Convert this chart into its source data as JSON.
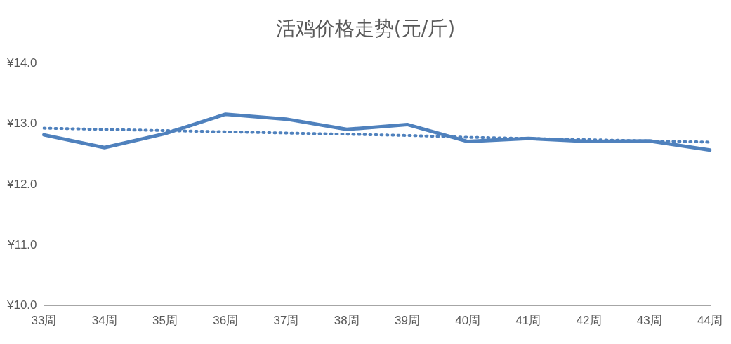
{
  "chart_data": {
    "type": "line",
    "title": "活鸡价格走势(元/斤)",
    "categories": [
      "33周",
      "34周",
      "35周",
      "36周",
      "37周",
      "38周",
      "39周",
      "40周",
      "41周",
      "42周",
      "43周",
      "44周"
    ],
    "series": [
      {
        "color": "#4f81bd",
        "line_style": "solid",
        "values": [
          12.82,
          12.61,
          12.84,
          13.16,
          13.08,
          12.91,
          12.99,
          12.71,
          12.76,
          12.71,
          12.72,
          12.57
        ]
      },
      {
        "color": "#4f81bd",
        "line_style": "dotted",
        "values": [
          12.93,
          12.91,
          12.89,
          12.87,
          12.85,
          12.83,
          12.81,
          12.78,
          12.76,
          12.74,
          12.72,
          12.7
        ]
      }
    ],
    "ylim": [
      10,
      14
    ],
    "yticks": [
      {
        "value": 10,
        "label": "¥10.0"
      },
      {
        "value": 11,
        "label": "¥11.0"
      },
      {
        "value": 12,
        "label": "¥12.0"
      },
      {
        "value": 13,
        "label": "¥13.0"
      },
      {
        "value": 14,
        "label": "¥14.0"
      }
    ],
    "grid": false,
    "legend": false,
    "marker": "none"
  }
}
